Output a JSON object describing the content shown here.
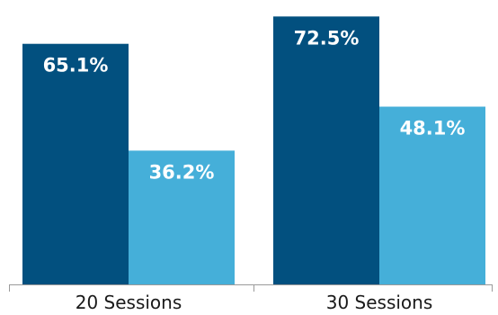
{
  "chart_data": {
    "type": "bar",
    "categories": [
      "20 Sessions",
      "30 Sessions"
    ],
    "series": [
      {
        "values": [
          65.1,
          72.5
        ],
        "labels": [
          "65.1%",
          "72.5%"
        ],
        "color": "#02507f"
      },
      {
        "values": [
          36.2,
          48.1
        ],
        "labels": [
          "36.2%",
          "48.1%"
        ],
        "color": "#45afd9"
      }
    ],
    "ylim": [
      0,
      75.5
    ],
    "grid": false,
    "legend": "none",
    "xlabel": "",
    "ylabel": ""
  }
}
